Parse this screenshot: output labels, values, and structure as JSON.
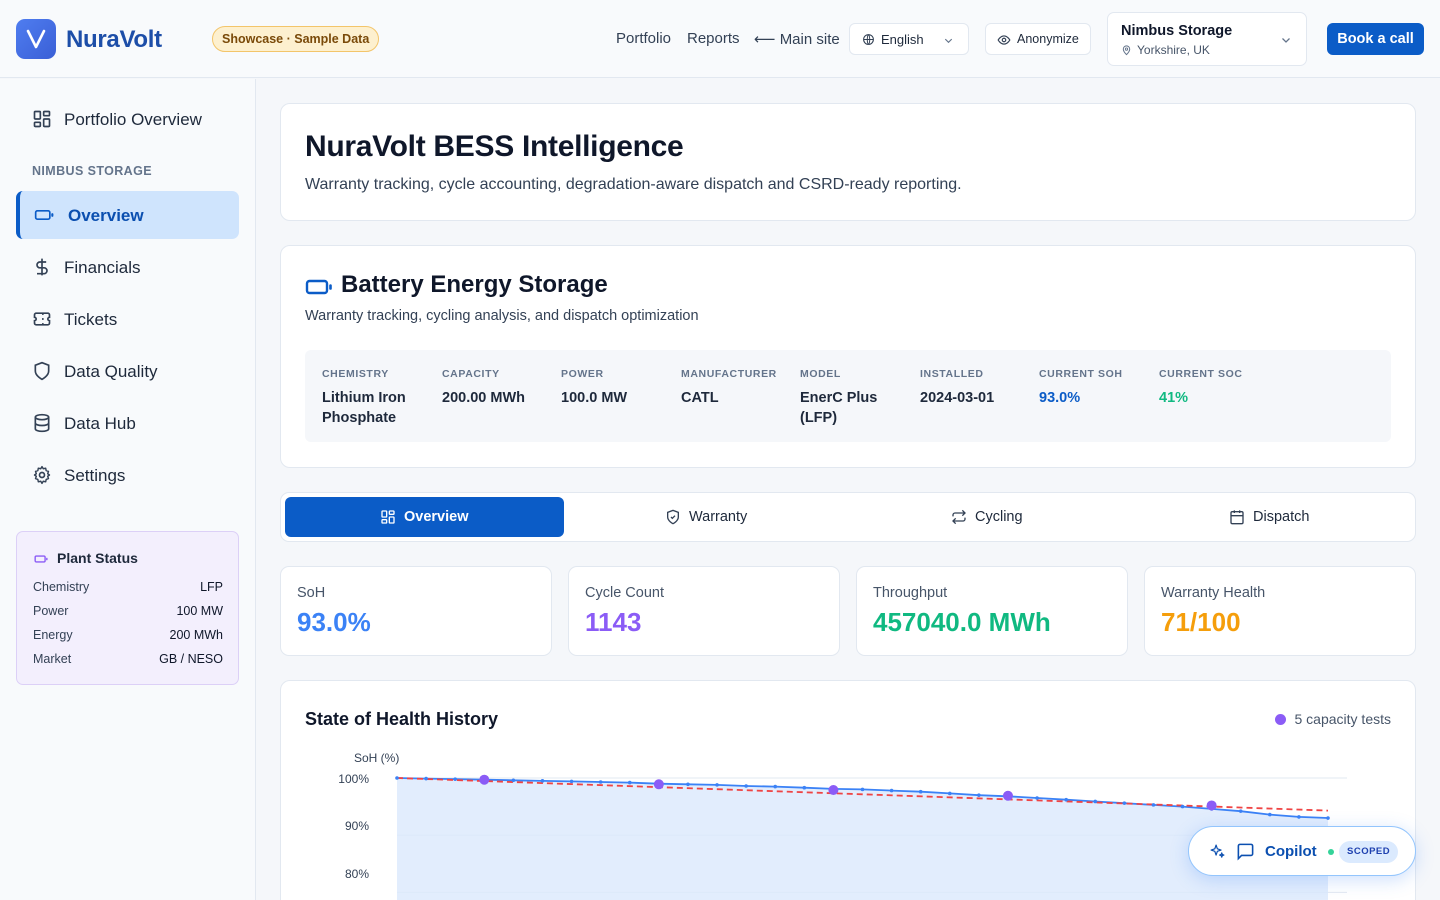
{
  "header": {
    "brand": "NuraVolt",
    "badge": "Showcase · Sample Data",
    "nav": {
      "portfolio": "Portfolio",
      "reports": "Reports",
      "main_site": "Main site"
    },
    "language": "English",
    "anonymize": "Anonymize",
    "site": {
      "name": "Nimbus Storage",
      "location": "Yorkshire, UK"
    },
    "book_call": "Book a call"
  },
  "sidebar": {
    "portfolio_overview": "Portfolio Overview",
    "section": "NIMBUS STORAGE",
    "items": [
      {
        "label": "Overview",
        "icon": "battery-icon"
      },
      {
        "label": "Financials",
        "icon": "dollar-icon"
      },
      {
        "label": "Tickets",
        "icon": "ticket-icon"
      },
      {
        "label": "Data Quality",
        "icon": "shield-icon"
      },
      {
        "label": "Data Hub",
        "icon": "database-icon"
      },
      {
        "label": "Settings",
        "icon": "gear-icon"
      }
    ],
    "plant_status": {
      "title": "Plant Status",
      "rows": [
        {
          "k": "Chemistry",
          "v": "LFP"
        },
        {
          "k": "Power",
          "v": "100 MW"
        },
        {
          "k": "Energy",
          "v": "200 MWh"
        },
        {
          "k": "Market",
          "v": "GB / NESO"
        }
      ]
    }
  },
  "hero": {
    "title": "NuraVolt BESS Intelligence",
    "subtitle": "Warranty tracking, cycle accounting, degradation-aware dispatch and CSRD-ready reporting."
  },
  "asset": {
    "title": "Battery Energy Storage",
    "subtitle": "Warranty tracking, cycling analysis, and dispatch optimization",
    "specs": [
      {
        "k": "CHEMISTRY",
        "v": "Lithium Iron Phosphate"
      },
      {
        "k": "CAPACITY",
        "v": "200.00 MWh"
      },
      {
        "k": "POWER",
        "v": "100.0 MW"
      },
      {
        "k": "MANUFACTURER",
        "v": "CATL"
      },
      {
        "k": "MODEL",
        "v": "EnerC Plus (LFP)"
      },
      {
        "k": "INSTALLED",
        "v": "2024-03-01"
      },
      {
        "k": "CURRENT SOH",
        "v": "93.0%"
      },
      {
        "k": "CURRENT SOC",
        "v": "41%"
      }
    ]
  },
  "tabs": [
    "Overview",
    "Warranty",
    "Cycling",
    "Dispatch"
  ],
  "kpis": [
    {
      "k": "SoH",
      "v": "93.0%",
      "color": "#3b82f6"
    },
    {
      "k": "Cycle Count",
      "v": "1143",
      "color": "#8b5cf6"
    },
    {
      "k": "Throughput",
      "v": "457040.0 MWh",
      "color": "#10b981"
    },
    {
      "k": "Warranty Health",
      "v": "71/100",
      "color": "#f59e0b"
    }
  ],
  "chart": {
    "title": "State of Health History",
    "legend": "5 capacity tests",
    "ylabel": "SoH (%)",
    "yticks": [
      "100%",
      "90%",
      "80%"
    ]
  },
  "chart_data": {
    "type": "line",
    "title": "State of Health History",
    "ylabel": "SoH (%)",
    "ylim": [
      75,
      100
    ],
    "series": [
      {
        "values": [
          100.0,
          99.9,
          99.8,
          99.7,
          99.6,
          99.5,
          99.4,
          99.3,
          99.2,
          99.0,
          98.9,
          98.8,
          98.6,
          98.5,
          98.3,
          98.1,
          98.0,
          97.8,
          97.6,
          97.3,
          97.0,
          96.8,
          96.5,
          96.2,
          95.9,
          95.6,
          95.3,
          95.0,
          94.6,
          94.2,
          93.6,
          93.2,
          93.0
        ]
      }
    ],
    "capacity_tests": [
      {
        "i": 3,
        "v": 99.7
      },
      {
        "i": 9,
        "v": 98.9
      },
      {
        "i": 15,
        "v": 97.9
      },
      {
        "i": 21,
        "v": 96.9
      },
      {
        "i": 28,
        "v": 95.2
      }
    ],
    "trend": [
      100.0,
      94.3
    ],
    "colors": {
      "line": "#3b82f6",
      "area": "#dbe8fd",
      "tests": "#8b5cf6",
      "trend": "#ef4444"
    }
  },
  "copilot": {
    "label": "Copilot",
    "badge": "SCOPED"
  }
}
